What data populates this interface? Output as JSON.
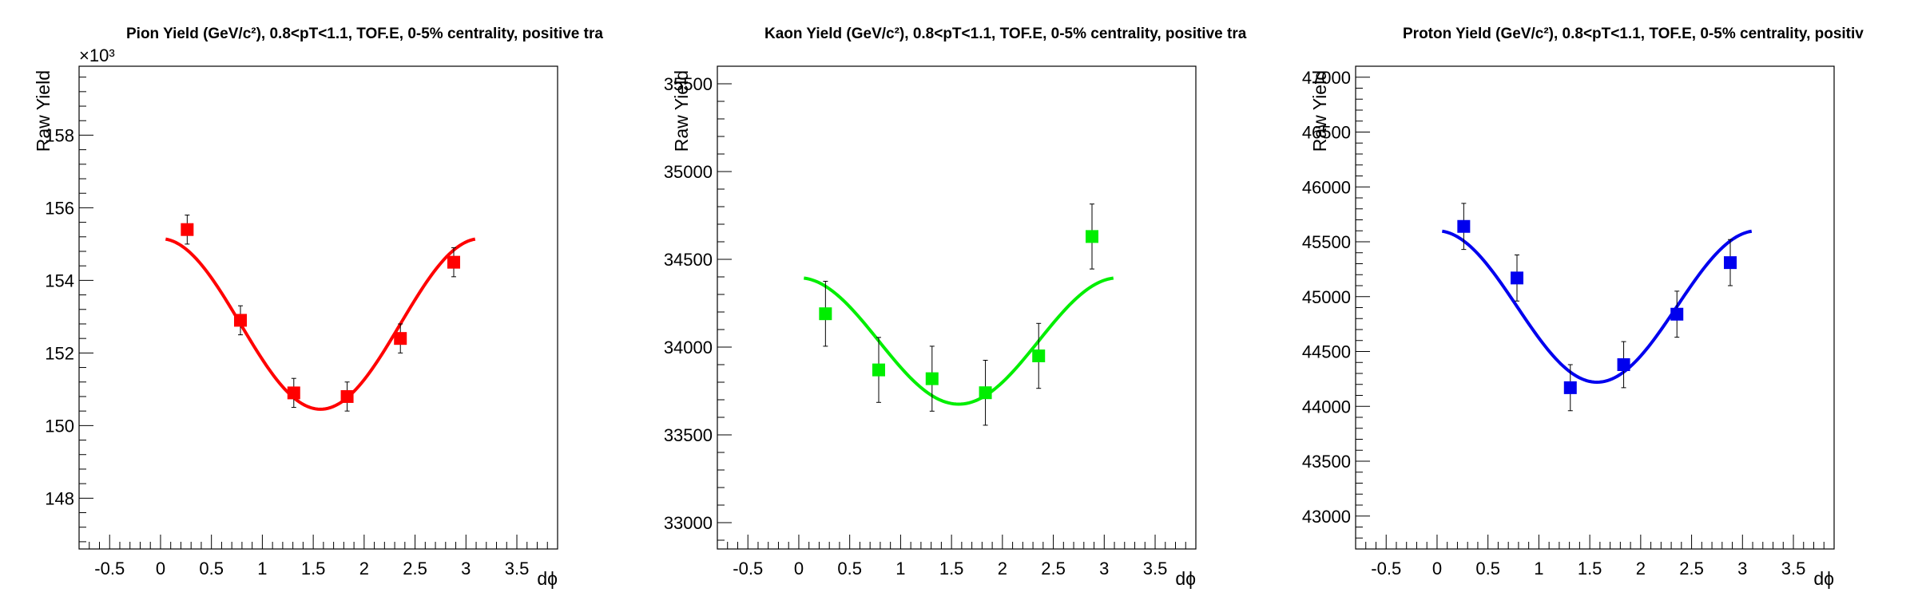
{
  "chart_data": [
    {
      "type": "scatter",
      "title": "Pion Yield (GeV/c²), 0.8<pT<1.1, TOF.E, 0-5% centrality, positive tra",
      "xlabel": "dϕ",
      "ylabel": "Raw Yield",
      "ylabel_multiplier": "×10³",
      "xlim": [
        -0.8,
        3.9
      ],
      "ylim": [
        146.6,
        159.9
      ],
      "xticks": [
        -0.5,
        0,
        0.5,
        1,
        1.5,
        2,
        2.5,
        3,
        3.5
      ],
      "xtick_labels": [
        "-0.5",
        "0",
        "0.5",
        "1",
        "1.5",
        "2",
        "2.5",
        "3",
        "3.5"
      ],
      "yticks": [
        148,
        150,
        152,
        154,
        156,
        158
      ],
      "ytick_labels": [
        "148",
        "150",
        "152",
        "154",
        "156",
        "158"
      ],
      "color": "#ff0000",
      "points": {
        "x": [
          0.262,
          0.785,
          1.309,
          1.833,
          2.356,
          2.88
        ],
        "y": [
          155.4,
          152.9,
          150.9,
          150.8,
          152.4,
          154.5
        ],
        "err": [
          0.4,
          0.4,
          0.4,
          0.4,
          0.4,
          0.4
        ]
      },
      "fit": {
        "model": "a + b*cos(2x)",
        "a": 152.8,
        "b": 2.35,
        "xrange": [
          0.05,
          3.09
        ]
      }
    },
    {
      "type": "scatter",
      "title": "Kaon Yield (GeV/c²), 0.8<pT<1.1, TOF.E, 0-5% centrality, positive tra",
      "xlabel": "dϕ",
      "ylabel": "Raw Yield",
      "xlim": [
        -0.8,
        3.9
      ],
      "ylim": [
        32850,
        35600
      ],
      "xticks": [
        -0.5,
        0,
        0.5,
        1,
        1.5,
        2,
        2.5,
        3,
        3.5
      ],
      "xtick_labels": [
        "-0.5",
        "0",
        "0.5",
        "1",
        "1.5",
        "2",
        "2.5",
        "3",
        "3.5"
      ],
      "yticks": [
        33000,
        33500,
        34000,
        34500,
        35000,
        35500
      ],
      "ytick_labels": [
        "33000",
        "33500",
        "34000",
        "34500",
        "35000",
        "35500"
      ],
      "color": "#00ee00",
      "points": {
        "x": [
          0.262,
          0.785,
          1.309,
          1.833,
          2.356,
          2.88
        ],
        "y": [
          34190,
          33870,
          33820,
          33740,
          33950,
          34630
        ],
        "err": [
          185,
          185,
          185,
          185,
          185,
          185
        ]
      },
      "fit": {
        "model": "a + b*cos(2x)",
        "a": 34035,
        "b": 360,
        "xrange": [
          0.05,
          3.09
        ]
      }
    },
    {
      "type": "scatter",
      "title": "Proton Yield (GeV/c²), 0.8<pT<1.1, TOF.E, 0-5% centrality, positiv",
      "xlabel": "dϕ",
      "ylabel": "Raw Yield",
      "xlim": [
        -0.8,
        3.9
      ],
      "ylim": [
        42700,
        47100
      ],
      "xticks": [
        -0.5,
        0,
        0.5,
        1,
        1.5,
        2,
        2.5,
        3,
        3.5
      ],
      "xtick_labels": [
        "-0.5",
        "0",
        "0.5",
        "1",
        "1.5",
        "2",
        "2.5",
        "3",
        "3.5"
      ],
      "yticks": [
        43000,
        43500,
        44000,
        44500,
        45000,
        45500,
        46000,
        46500,
        47000
      ],
      "ytick_labels": [
        "43000",
        "43500",
        "44000",
        "44500",
        "45000",
        "45500",
        "46000",
        "46500",
        "47000"
      ],
      "color": "#0000ee",
      "points": {
        "x": [
          0.262,
          0.785,
          1.309,
          1.833,
          2.356,
          2.88
        ],
        "y": [
          45640,
          45170,
          44170,
          44380,
          44840,
          45310
        ],
        "err": [
          210,
          210,
          210,
          210,
          210,
          210
        ]
      },
      "fit": {
        "model": "a + b*cos(2x)",
        "a": 44910,
        "b": 690,
        "xrange": [
          0.05,
          3.09
        ]
      }
    }
  ]
}
